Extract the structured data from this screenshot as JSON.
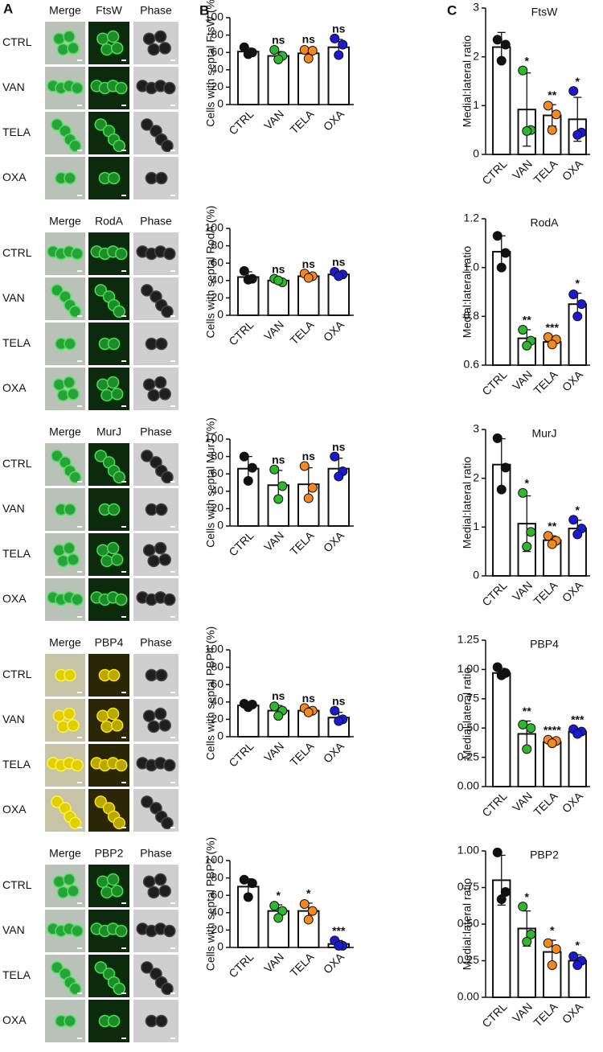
{
  "panel_labels": [
    "A",
    "B",
    "C"
  ],
  "micrographs": [
    {
      "headers": [
        "Merge",
        "FtsW",
        "Phase"
      ],
      "rows": [
        "CTRL",
        "VAN",
        "TELA",
        "OXA"
      ]
    },
    {
      "headers": [
        "Merge",
        "RodA",
        "Phase"
      ],
      "rows": [
        "CTRL",
        "VAN",
        "TELA",
        "OXA"
      ]
    },
    {
      "headers": [
        "Merge",
        "MurJ",
        "Phase"
      ],
      "rows": [
        "CTRL",
        "VAN",
        "TELA",
        "OXA"
      ]
    },
    {
      "headers": [
        "Merge",
        "PBP4",
        "Phase"
      ],
      "rows": [
        "CTRL",
        "VAN",
        "TELA",
        "OXA"
      ]
    },
    {
      "headers": [
        "Merge",
        "PBP2",
        "Phase"
      ],
      "rows": [
        "CTRL",
        "VAN",
        "TELA",
        "OXA"
      ]
    }
  ],
  "chart_data": [
    {
      "type": "bar",
      "ylabel": "Cells with septal FtsW (%)",
      "categories": [
        "CTRL",
        "VAN",
        "TELA",
        "OXA"
      ],
      "color": "#ffffff",
      "point_colors": [
        "#111111",
        "#2eb82e",
        "#f5891f",
        "#1a1ad6"
      ],
      "values": [
        61,
        56,
        59,
        66
      ],
      "errors": [
        4,
        5,
        5,
        9
      ],
      "points": [
        [
          66,
          60,
          58
        ],
        [
          63,
          56,
          52
        ],
        [
          63,
          62,
          53
        ],
        [
          76,
          69,
          57
        ]
      ],
      "annotations": [
        null,
        "ns",
        "ns",
        "ns"
      ],
      "ylim": [
        0,
        100
      ],
      "yticks": [
        0,
        20,
        40,
        60,
        80,
        100
      ]
    },
    {
      "type": "bar",
      "title": "FtsW",
      "ylabel": "Medial:lateral ratio",
      "categories": [
        "CTRL",
        "VAN",
        "TELA",
        "OXA"
      ],
      "color": "#ffffff",
      "point_colors": [
        "#111111",
        "#2eb82e",
        "#f5891f",
        "#1a1ad6"
      ],
      "values": [
        2.2,
        0.92,
        0.8,
        0.72
      ],
      "errors": [
        0.3,
        0.75,
        0.22,
        0.45
      ],
      "points": [
        [
          2.35,
          2.25,
          1.92
        ],
        [
          1.72,
          0.5,
          0.48
        ],
        [
          1.0,
          0.82,
          0.5
        ],
        [
          1.3,
          0.45,
          0.4
        ]
      ],
      "annotations": [
        null,
        "*",
        "**",
        "*"
      ],
      "ylim": [
        0,
        3
      ],
      "yticks": [
        0,
        1,
        2,
        3
      ]
    },
    {
      "type": "bar",
      "ylabel": "Cells with septal RodA (%)",
      "categories": [
        "CTRL",
        "VAN",
        "TELA",
        "OXA"
      ],
      "color": "#ffffff",
      "point_colors": [
        "#111111",
        "#2eb82e",
        "#f5891f",
        "#1a1ad6"
      ],
      "values": [
        44,
        40,
        45,
        47
      ],
      "errors": [
        6,
        2,
        3,
        3
      ],
      "points": [
        [
          51,
          42,
          41
        ],
        [
          42,
          38,
          40
        ],
        [
          48,
          45,
          43
        ],
        [
          50,
          47,
          45
        ]
      ],
      "annotations": [
        null,
        "ns",
        "ns",
        "ns"
      ],
      "ylim": [
        0,
        100
      ],
      "yticks": [
        0,
        20,
        40,
        60,
        80,
        100
      ]
    },
    {
      "type": "bar",
      "title": "RodA",
      "ylabel": "Medial:lateral ratio",
      "categories": [
        "CTRL",
        "VAN",
        "TELA",
        "OXA"
      ],
      "color": "#ffffff",
      "point_colors": [
        "#111111",
        "#2eb82e",
        "#f5891f",
        "#1a1ad6"
      ],
      "values": [
        1.065,
        0.71,
        0.695,
        0.85
      ],
      "errors": [
        0.065,
        0.035,
        0.015,
        0.045
      ],
      "points": [
        [
          1.13,
          1.06,
          1.0
        ],
        [
          0.745,
          0.7,
          0.68
        ],
        [
          0.715,
          0.705,
          0.685
        ],
        [
          0.89,
          0.85,
          0.8
        ]
      ],
      "annotations": [
        null,
        "**",
        "***",
        "*"
      ],
      "ylim": [
        0.6,
        1.2
      ],
      "yticks": [
        0.6,
        0.8,
        {
          "value": 1,
          "label": "1.0"
        },
        1.2
      ]
    },
    {
      "type": "bar",
      "ylabel": "Cells with septal MurJ (%)",
      "categories": [
        "CTRL",
        "VAN",
        "TELA",
        "OXA"
      ],
      "color": "#ffffff",
      "point_colors": [
        "#111111",
        "#2eb82e",
        "#f5891f",
        "#1a1ad6"
      ],
      "values": [
        66,
        47,
        48,
        66
      ],
      "errors": [
        14,
        17,
        19,
        12
      ],
      "points": [
        [
          80,
          67,
          52
        ],
        [
          65,
          46,
          31
        ],
        [
          69,
          44,
          32
        ],
        [
          80,
          63,
          57
        ]
      ],
      "annotations": [
        null,
        "ns",
        "ns",
        "ns"
      ],
      "ylim": [
        0,
        100
      ],
      "yticks": [
        0,
        20,
        40,
        60,
        80,
        100
      ]
    },
    {
      "type": "bar",
      "title": "MurJ",
      "ylabel": "Medial:lateral ratio",
      "categories": [
        "CTRL",
        "VAN",
        "TELA",
        "OXA"
      ],
      "color": "#ffffff",
      "point_colors": [
        "#111111",
        "#2eb82e",
        "#f5891f",
        "#1a1ad6"
      ],
      "values": [
        2.28,
        1.07,
        0.73,
        0.97
      ],
      "errors": [
        0.53,
        0.57,
        0.09,
        0.17
      ],
      "points": [
        [
          2.82,
          2.22,
          1.77
        ],
        [
          1.7,
          0.9,
          0.6
        ],
        [
          0.82,
          0.72,
          0.65
        ],
        [
          1.15,
          0.97,
          0.85
        ]
      ],
      "annotations": [
        null,
        "*",
        "**",
        "*"
      ],
      "ylim": [
        0,
        3
      ],
      "yticks": [
        0,
        1,
        2,
        3
      ]
    },
    {
      "type": "bar",
      "ylabel": "Cells with septal PBP4 (%)",
      "categories": [
        "CTRL",
        "VAN",
        "TELA",
        "OXA"
      ],
      "color": "#ffffff",
      "point_colors": [
        "#111111",
        "#2eb82e",
        "#f5891f",
        "#1a1ad6"
      ],
      "values": [
        36,
        30,
        30,
        22
      ],
      "errors": [
        2,
        6,
        3,
        6
      ],
      "points": [
        [
          38,
          37,
          34
        ],
        [
          35,
          30,
          24
        ],
        [
          33,
          30,
          28
        ],
        [
          30,
          20,
          18
        ]
      ],
      "annotations": [
        null,
        "ns",
        "ns",
        "ns"
      ],
      "ylim": [
        0,
        100
      ],
      "yticks": [
        0,
        20,
        40,
        60,
        80,
        100
      ]
    },
    {
      "type": "bar",
      "title": "PBP4",
      "ylabel": "Medial:lateral ratio",
      "categories": [
        "CTRL",
        "VAN",
        "TELA",
        "OXA"
      ],
      "color": "#ffffff",
      "point_colors": [
        "#111111",
        "#2eb82e",
        "#f5891f",
        "#1a1ad6"
      ],
      "values": [
        0.97,
        0.45,
        0.38,
        0.47
      ],
      "errors": [
        0.04,
        0.11,
        0.02,
        0.02
      ],
      "points": [
        [
          1.02,
          0.97,
          0.95
        ],
        [
          0.53,
          0.5,
          0.32
        ],
        [
          0.4,
          0.39,
          0.37
        ],
        [
          0.49,
          0.47,
          0.45
        ]
      ],
      "annotations": [
        null,
        "**",
        "****",
        "***"
      ],
      "ylim": [
        0,
        1.25
      ],
      "yticks": [
        {
          "value": 0,
          "label": "0.00"
        },
        0.25,
        {
          "value": 0.5,
          "label": "0.50"
        },
        0.75,
        {
          "value": 1,
          "label": "1.00"
        },
        1.25
      ]
    },
    {
      "type": "bar",
      "ylabel": "Cells with septal PBP2 (%)",
      "categories": [
        "CTRL",
        "VAN",
        "TELA",
        "OXA"
      ],
      "color": "#ffffff",
      "point_colors": [
        "#111111",
        "#2eb82e",
        "#f5891f",
        "#1a1ad6"
      ],
      "values": [
        70,
        42,
        42,
        4
      ],
      "errors": [
        9,
        7,
        9,
        4
      ],
      "points": [
        [
          78,
          74,
          58
        ],
        [
          48,
          42,
          34
        ],
        [
          50,
          42,
          32
        ],
        [
          8,
          2,
          2
        ]
      ],
      "annotations": [
        null,
        "*",
        "*",
        "***"
      ],
      "ylim": [
        0,
        100
      ],
      "yticks": [
        0,
        20,
        40,
        60,
        80,
        100
      ]
    },
    {
      "type": "bar",
      "title": "PBP2",
      "ylabel": "Medial:lateral ratio",
      "categories": [
        "CTRL",
        "VAN",
        "TELA",
        "OXA"
      ],
      "color": "#ffffff",
      "point_colors": [
        "#111111",
        "#2eb82e",
        "#f5891f",
        "#1a1ad6"
      ],
      "values": [
        0.8,
        0.47,
        0.31,
        0.25
      ],
      "errors": [
        0.17,
        0.12,
        0.08,
        0.04
      ],
      "points": [
        [
          0.99,
          0.72,
          0.67
        ],
        [
          0.62,
          0.43,
          0.38
        ],
        [
          0.37,
          0.33,
          0.22
        ],
        [
          0.28,
          0.25,
          0.22
        ]
      ],
      "annotations": [
        null,
        "*",
        "*",
        "*"
      ],
      "ylim": [
        0,
        1
      ],
      "yticks": [
        {
          "value": 0,
          "label": "0.00"
        },
        0.25,
        {
          "value": 0.5,
          "label": "0.50"
        },
        0.75,
        {
          "value": 1,
          "label": "1.00"
        }
      ]
    }
  ]
}
